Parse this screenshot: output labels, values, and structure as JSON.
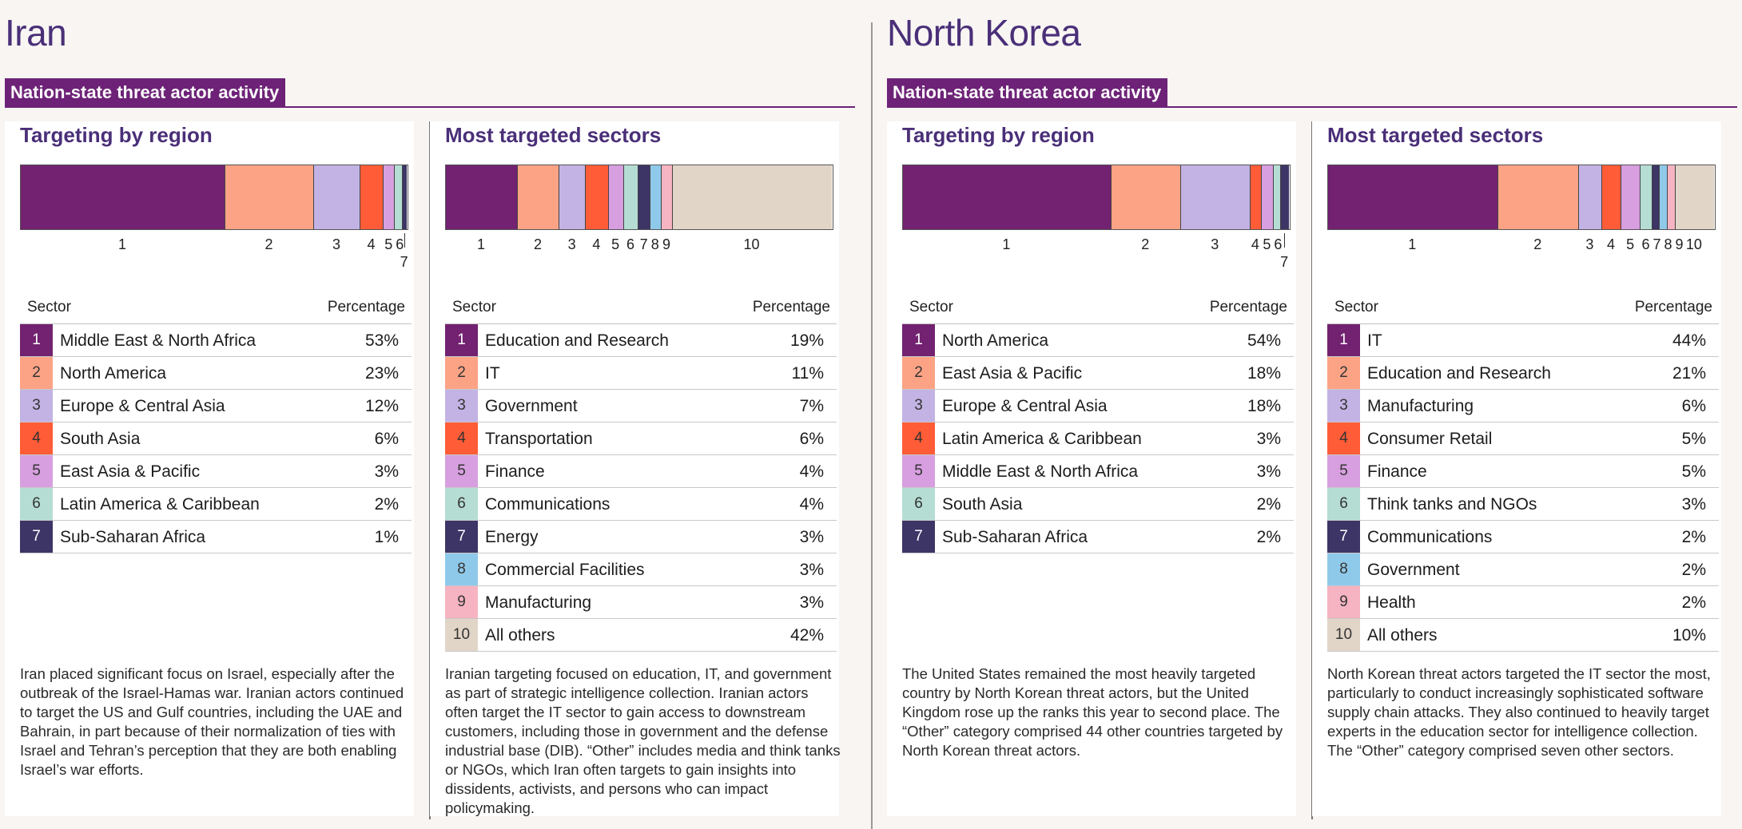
{
  "countries": [
    {
      "name": "Iran",
      "banner": "Nation-state threat actor activity",
      "region_panel": {
        "title": "Targeting by region",
        "col_sector": "Sector",
        "col_pct": "Percentage",
        "rows": [
          {
            "num": "1",
            "name": "Middle East & North Africa",
            "pct": "53%",
            "value": 53
          },
          {
            "num": "2",
            "name": "North America",
            "pct": "23%",
            "value": 23
          },
          {
            "num": "3",
            "name": "Europe & Central Asia",
            "pct": "12%",
            "value": 12
          },
          {
            "num": "4",
            "name": "South Asia",
            "pct": "6%",
            "value": 6
          },
          {
            "num": "5",
            "name": "East Asia & Pacific",
            "pct": "3%",
            "value": 3
          },
          {
            "num": "6",
            "name": "Latin America & Caribbean",
            "pct": "2%",
            "value": 2
          },
          {
            "num": "7",
            "name": "Sub-Saharan Africa",
            "pct": "1%",
            "value": 1
          }
        ],
        "description": "Iran placed significant focus on Israel, especially after the outbreak of the Israel-Hamas war. Iranian actors continued to target the US and Gulf countries, including the UAE and Bahrain, in part because of their normalization of ties with Israel and Tehran’s perception that they are both enabling Israel’s war efforts."
      },
      "sector_panel": {
        "title": "Most targeted sectors",
        "col_sector": "Sector",
        "col_pct": "Percentage",
        "rows": [
          {
            "num": "1",
            "name": "Education and Research",
            "pct": "19%",
            "value": 19
          },
          {
            "num": "2",
            "name": "IT",
            "pct": "11%",
            "value": 11
          },
          {
            "num": "3",
            "name": "Government",
            "pct": "7%",
            "value": 7
          },
          {
            "num": "4",
            "name": "Transportation",
            "pct": "6%",
            "value": 6
          },
          {
            "num": "5",
            "name": "Finance",
            "pct": "4%",
            "value": 4
          },
          {
            "num": "6",
            "name": "Communications",
            "pct": "4%",
            "value": 4
          },
          {
            "num": "7",
            "name": "Energy",
            "pct": "3%",
            "value": 3
          },
          {
            "num": "8",
            "name": "Commercial Facilities",
            "pct": "3%",
            "value": 3
          },
          {
            "num": "9",
            "name": "Manufacturing",
            "pct": "3%",
            "value": 3
          },
          {
            "num": "10",
            "name": "All others",
            "pct": "42%",
            "value": 42
          }
        ],
        "description": "Iranian targeting focused on education, IT, and government as part of strategic intelligence collection. Iranian actors often target the IT sector to gain access to downstream customers, including those in government and the defense industrial base (DIB). “Other” includes media and think tanks or NGOs, which Iran often targets to gain insights into dissidents, activists, and persons who can impact policymaking."
      }
    },
    {
      "name": "North Korea",
      "banner": "Nation-state threat actor activity",
      "region_panel": {
        "title": "Targeting by region",
        "col_sector": "Sector",
        "col_pct": "Percentage",
        "rows": [
          {
            "num": "1",
            "name": "North America",
            "pct": "54%",
            "value": 54
          },
          {
            "num": "2",
            "name": "East Asia & Pacific",
            "pct": "18%",
            "value": 18
          },
          {
            "num": "3",
            "name": "Europe & Central Asia",
            "pct": "18%",
            "value": 18
          },
          {
            "num": "4",
            "name": "Latin America & Caribbean",
            "pct": "3%",
            "value": 3
          },
          {
            "num": "5",
            "name": "Middle East & North Africa",
            "pct": "3%",
            "value": 3
          },
          {
            "num": "6",
            "name": "South Asia",
            "pct": "2%",
            "value": 2
          },
          {
            "num": "7",
            "name": "Sub-Saharan Africa",
            "pct": "2%",
            "value": 2
          }
        ],
        "description": "The United States remained the most heavily targeted country by North Korean threat actors, but the United Kingdom rose up the ranks this year to second place. The “Other” category comprised 44 other countries targeted by North Korean threat actors."
      },
      "sector_panel": {
        "title": "Most targeted sectors",
        "col_sector": "Sector",
        "col_pct": "Percentage",
        "rows": [
          {
            "num": "1",
            "name": "IT",
            "pct": "44%",
            "value": 44
          },
          {
            "num": "2",
            "name": "Education and Research",
            "pct": "21%",
            "value": 21
          },
          {
            "num": "3",
            "name": "Manufacturing",
            "pct": "6%",
            "value": 6
          },
          {
            "num": "4",
            "name": "Consumer Retail",
            "pct": "5%",
            "value": 5
          },
          {
            "num": "5",
            "name": "Finance",
            "pct": "5%",
            "value": 5
          },
          {
            "num": "6",
            "name": "Think tanks and NGOs",
            "pct": "3%",
            "value": 3
          },
          {
            "num": "7",
            "name": "Communications",
            "pct": "2%",
            "value": 2
          },
          {
            "num": "8",
            "name": "Government",
            "pct": "2%",
            "value": 2
          },
          {
            "num": "9",
            "name": "Health",
            "pct": "2%",
            "value": 2
          },
          {
            "num": "10",
            "name": "All others",
            "pct": "10%",
            "value": 10
          }
        ],
        "description": "North Korean threat actors targeted the IT sector the most, particularly to conduct increasingly sophisticated software supply chain attacks. They also continued to heavily target experts in the education sector for intelligence collection. The “Other” category comprised seven other sectors."
      }
    }
  ],
  "palette": [
    "#722270",
    "#fca386",
    "#c3b3e4",
    "#ff5c37",
    "#d79fdf",
    "#b5ddd3",
    "#3c3566",
    "#8fc9ea",
    "#f6b3c2",
    "#e1d5c8"
  ],
  "number_text_colors": [
    "#ffffff",
    "#333333",
    "#333333",
    "#333333",
    "#333333",
    "#333333",
    "#ffffff",
    "#333333",
    "#333333",
    "#333333"
  ],
  "chart_data": [
    {
      "type": "bar",
      "stacked": true,
      "title": "Targeting by region",
      "categories": [
        "Middle East & North Africa",
        "North America",
        "Europe & Central Asia",
        "South Asia",
        "East Asia & Pacific",
        "Latin America & Caribbean",
        "Sub-Saharan Africa"
      ],
      "values": [
        53,
        23,
        12,
        6,
        3,
        2,
        1
      ]
    },
    {
      "type": "bar",
      "stacked": true,
      "title": "Most targeted sectors",
      "categories": [
        "Education and Research",
        "IT",
        "Government",
        "Transportation",
        "Finance",
        "Communications",
        "Energy",
        "Commercial Facilities",
        "Manufacturing",
        "All others"
      ],
      "values": [
        19,
        11,
        7,
        6,
        4,
        4,
        3,
        3,
        3,
        42
      ]
    },
    {
      "type": "bar",
      "stacked": true,
      "title": "Targeting by region",
      "categories": [
        "North America",
        "East Asia & Pacific",
        "Europe & Central Asia",
        "Latin America & Caribbean",
        "Middle East & North Africa",
        "South Asia",
        "Sub-Saharan Africa"
      ],
      "values": [
        54,
        18,
        18,
        3,
        3,
        2,
        2
      ]
    },
    {
      "type": "bar",
      "stacked": true,
      "title": "Most targeted sectors",
      "categories": [
        "IT",
        "Education and Research",
        "Manufacturing",
        "Consumer Retail",
        "Finance",
        "Think tanks and NGOs",
        "Communications",
        "Government",
        "Health",
        "All others"
      ],
      "values": [
        44,
        21,
        6,
        5,
        5,
        3,
        2,
        2,
        2,
        10
      ]
    }
  ]
}
